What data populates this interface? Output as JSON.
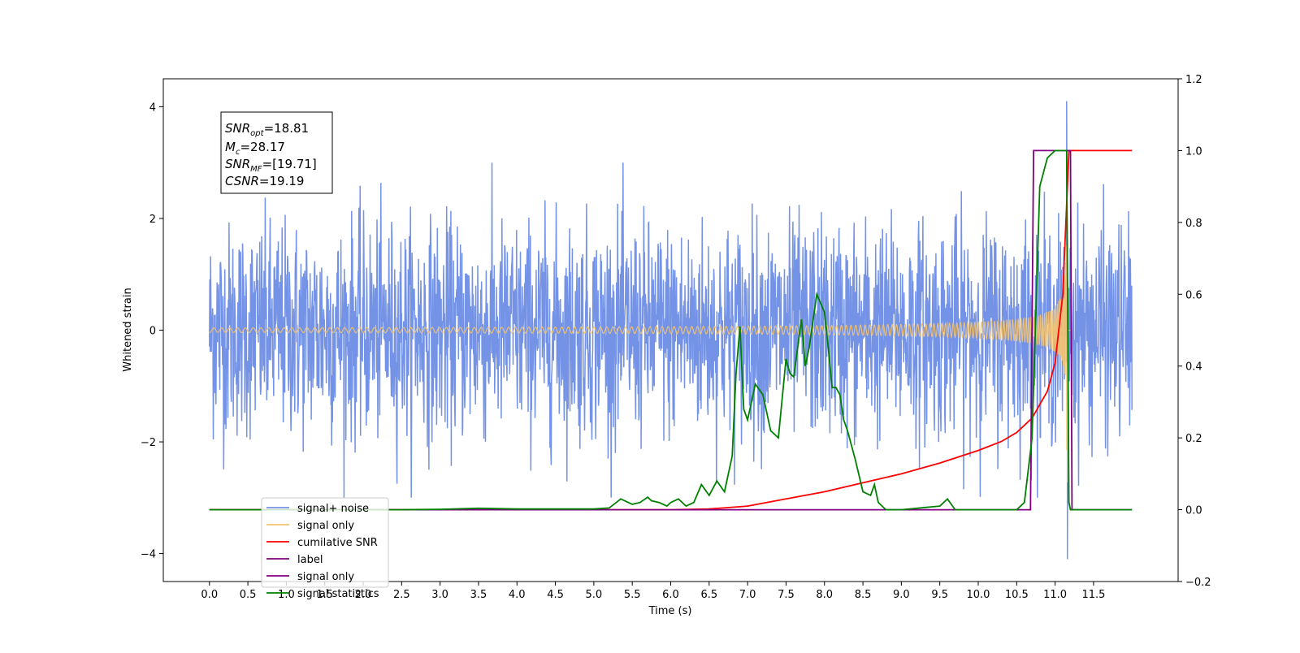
{
  "chart_data": {
    "type": "line",
    "xlabel": "Time (s)",
    "ylabel": "Whitened strain",
    "xlim": [
      -0.6,
      12.6
    ],
    "ylim": [
      -4.5,
      4.5
    ],
    "y2lim": [
      -0.2,
      1.2
    ],
    "xticks": [
      "0.0",
      "0.5",
      "1.0",
      "1.5",
      "2.0",
      "2.5",
      "3.0",
      "3.5",
      "4.0",
      "4.5",
      "5.0",
      "5.5",
      "6.0",
      "6.5",
      "7.0",
      "7.5",
      "8.0",
      "8.5",
      "9.0",
      "9.5",
      "10.0",
      "10.5",
      "11.0",
      "11.5"
    ],
    "yticks": [
      "4",
      "2",
      "0",
      "−2",
      "−4"
    ],
    "y2ticks": [
      "1.2",
      "1.0",
      "0.8",
      "0.6",
      "0.4",
      "0.2",
      "0.0",
      "−0.2"
    ],
    "grid": false,
    "legend_position": "lower-left",
    "annotation": {
      "lines": [
        {
          "base": "SNR",
          "sub": "opt",
          "rest": "=18.81"
        },
        {
          "base": "M",
          "sub": "c",
          "rest": "=28.17"
        },
        {
          "base": "SNR",
          "sub": "MF",
          "rest": "=[19.71]"
        },
        {
          "base": "CSNR",
          "sub": "",
          "rest": "=19.19"
        }
      ]
    },
    "series": [
      {
        "name": "signal+ noise",
        "axis": "left",
        "color": "#7493e6",
        "kind": "noise",
        "x_range": [
          0.0,
          12.0
        ],
        "noise_sigma": 0.95,
        "peak": [
          [
            11.15,
            4.1
          ],
          [
            11.16,
            -4.1
          ]
        ]
      },
      {
        "name": "signal only",
        "axis": "left",
        "color": "#f5c36e",
        "kind": "chirp",
        "x_range": [
          0.0,
          11.2
        ],
        "merger_time": 11.16,
        "peak_amplitude": 3.3
      },
      {
        "name": "cumilative SNR",
        "axis": "right",
        "color": "#ff0000",
        "x": [
          0.0,
          6.0,
          6.5,
          7.0,
          7.5,
          8.0,
          8.5,
          9.0,
          9.5,
          10.0,
          10.3,
          10.5,
          10.7,
          10.9,
          11.0,
          11.1,
          11.15,
          11.18,
          12.0
        ],
        "values": [
          0.0,
          0.0,
          0.002,
          0.01,
          0.03,
          0.05,
          0.075,
          0.1,
          0.13,
          0.165,
          0.19,
          0.215,
          0.255,
          0.33,
          0.41,
          0.6,
          0.85,
          1.0,
          1.0
        ]
      },
      {
        "name": "label",
        "axis": "right",
        "color": "#800080",
        "x": [
          0.0,
          10.68,
          10.72,
          11.2,
          11.22,
          12.0
        ],
        "values": [
          0.0,
          0.0,
          1.0,
          1.0,
          0.0,
          0.0
        ]
      },
      {
        "name": "signal only",
        "axis": "right",
        "color": "#800080",
        "kind": "hidden-legend-entry"
      },
      {
        "name": "signal statistics",
        "axis": "right",
        "color": "#008000",
        "x": [
          0.0,
          2.5,
          3.0,
          3.5,
          4.0,
          4.5,
          5.0,
          5.2,
          5.35,
          5.5,
          5.6,
          5.7,
          5.75,
          5.85,
          5.95,
          6.0,
          6.1,
          6.2,
          6.3,
          6.4,
          6.5,
          6.6,
          6.7,
          6.8,
          6.85,
          6.9,
          6.95,
          7.0,
          7.05,
          7.1,
          7.2,
          7.3,
          7.4,
          7.5,
          7.55,
          7.6,
          7.7,
          7.75,
          7.8,
          7.9,
          8.0,
          8.05,
          8.1,
          8.15,
          8.2,
          8.25,
          8.3,
          8.4,
          8.5,
          8.6,
          8.65,
          8.7,
          8.8,
          9.0,
          9.5,
          9.6,
          9.7,
          10.0,
          10.5,
          10.6,
          10.7,
          10.8,
          10.9,
          11.0,
          11.1,
          11.15,
          11.18,
          11.2,
          12.0
        ],
        "values": [
          0.0,
          0.0,
          0.001,
          0.004,
          0.002,
          0.002,
          0.002,
          0.005,
          0.03,
          0.015,
          0.02,
          0.035,
          0.025,
          0.02,
          0.01,
          0.02,
          0.03,
          0.01,
          0.02,
          0.07,
          0.04,
          0.08,
          0.05,
          0.15,
          0.38,
          0.51,
          0.28,
          0.25,
          0.3,
          0.35,
          0.32,
          0.22,
          0.2,
          0.42,
          0.38,
          0.37,
          0.53,
          0.4,
          0.45,
          0.6,
          0.55,
          0.45,
          0.34,
          0.34,
          0.32,
          0.25,
          0.22,
          0.14,
          0.05,
          0.04,
          0.07,
          0.02,
          0.0,
          0.0,
          0.01,
          0.03,
          0.0,
          0.0,
          0.0,
          0.02,
          0.2,
          0.9,
          0.98,
          1.0,
          1.0,
          1.0,
          0.02,
          0.0,
          0.0
        ]
      }
    ]
  }
}
